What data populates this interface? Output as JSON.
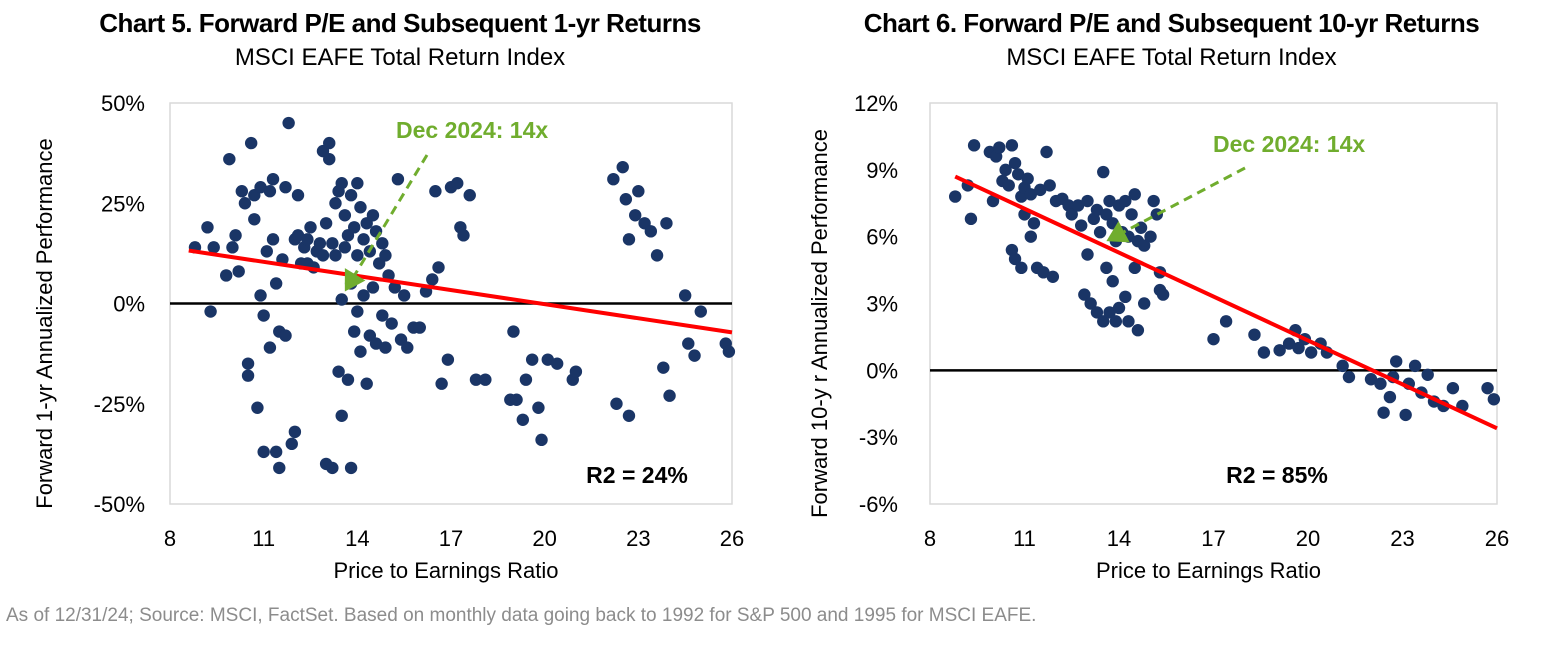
{
  "footnote": "As of 12/31/24; Source: MSCI, FactSet. Based on monthly data going back to 1992 for S&P 500 and 1995 for MSCI EAFE.",
  "colors": {
    "points": "#1a3566",
    "trend": "#ff0000",
    "annotation": "#70ad2e",
    "zero_line": "#000000",
    "border": "#d9d9d9"
  },
  "chart_data": [
    {
      "type": "scatter",
      "title": "Chart 5. Forward P/E and Subsequent 1-yr Returns",
      "subtitle": "MSCI EAFE Total Return Index",
      "xlabel": "Price to Earnings  Ratio",
      "ylabel": "Forward  1-yr Annualized  Performance",
      "xlim": [
        8,
        26
      ],
      "ylim": [
        -0.5,
        0.5
      ],
      "x_ticks": [
        8,
        11,
        14,
        17,
        20,
        23,
        26
      ],
      "y_ticks": [
        0.5,
        0.25,
        0,
        -0.25,
        -0.5
      ],
      "y_tick_labels": [
        "50%",
        "25%",
        "0%",
        "-25%",
        "-50%"
      ],
      "annotation": {
        "text": "Dec 2024: 14x",
        "x": 13.6,
        "y": 0.03
      },
      "r2_label": "R2 = 24%",
      "trendline": {
        "x": [
          8.6,
          26
        ],
        "y": [
          0.132,
          -0.072
        ]
      },
      "points": [
        [
          8.8,
          0.14
        ],
        [
          9.2,
          0.19
        ],
        [
          9.3,
          -0.02
        ],
        [
          9.4,
          0.14
        ],
        [
          9.8,
          0.07
        ],
        [
          9.9,
          0.36
        ],
        [
          10.0,
          0.14
        ],
        [
          10.1,
          0.17
        ],
        [
          10.2,
          0.08
        ],
        [
          10.3,
          0.28
        ],
        [
          10.4,
          0.25
        ],
        [
          10.5,
          -0.15
        ],
        [
          10.5,
          -0.18
        ],
        [
          10.6,
          0.4
        ],
        [
          10.7,
          0.21
        ],
        [
          10.7,
          0.27
        ],
        [
          10.8,
          -0.26
        ],
        [
          10.9,
          0.29
        ],
        [
          10.9,
          0.02
        ],
        [
          11.0,
          -0.03
        ],
        [
          11.0,
          -0.37
        ],
        [
          11.1,
          0.13
        ],
        [
          11.2,
          0.28
        ],
        [
          11.2,
          -0.11
        ],
        [
          11.3,
          0.31
        ],
        [
          11.3,
          0.16
        ],
        [
          11.4,
          -0.37
        ],
        [
          11.4,
          0.05
        ],
        [
          11.5,
          -0.41
        ],
        [
          11.5,
          -0.07
        ],
        [
          11.6,
          0.11
        ],
        [
          11.7,
          0.29
        ],
        [
          11.7,
          -0.08
        ],
        [
          11.8,
          0.45
        ],
        [
          11.9,
          -0.35
        ],
        [
          12.0,
          -0.32
        ],
        [
          12.0,
          0.16
        ],
        [
          12.1,
          0.27
        ],
        [
          12.1,
          0.17
        ],
        [
          12.2,
          0.1
        ],
        [
          12.3,
          0.14
        ],
        [
          12.4,
          0.16
        ],
        [
          12.4,
          0.1
        ],
        [
          12.5,
          0.19
        ],
        [
          12.6,
          0.09
        ],
        [
          12.7,
          0.13
        ],
        [
          12.8,
          0.15
        ],
        [
          12.9,
          0.38
        ],
        [
          12.9,
          0.12
        ],
        [
          13.0,
          -0.4
        ],
        [
          13.0,
          0.2
        ],
        [
          13.1,
          0.4
        ],
        [
          13.1,
          0.36
        ],
        [
          13.2,
          -0.41
        ],
        [
          13.2,
          0.15
        ],
        [
          13.3,
          0.25
        ],
        [
          13.3,
          0.12
        ],
        [
          13.4,
          0.28
        ],
        [
          13.4,
          -0.17
        ],
        [
          13.5,
          0.3
        ],
        [
          13.5,
          0.01
        ],
        [
          13.5,
          -0.28
        ],
        [
          13.6,
          0.22
        ],
        [
          13.6,
          0.14
        ],
        [
          13.7,
          0.17
        ],
        [
          13.7,
          -0.19
        ],
        [
          13.8,
          0.27
        ],
        [
          13.8,
          -0.41
        ],
        [
          13.8,
          0.05
        ],
        [
          13.9,
          0.19
        ],
        [
          13.9,
          -0.07
        ],
        [
          14.0,
          0.3
        ],
        [
          14.0,
          0.12
        ],
        [
          14.0,
          -0.02
        ],
        [
          14.1,
          0.24
        ],
        [
          14.1,
          -0.12
        ],
        [
          14.2,
          0.16
        ],
        [
          14.2,
          0.02
        ],
        [
          14.3,
          0.2
        ],
        [
          14.3,
          -0.2
        ],
        [
          14.4,
          0.13
        ],
        [
          14.4,
          -0.08
        ],
        [
          14.5,
          0.22
        ],
        [
          14.5,
          0.04
        ],
        [
          14.6,
          0.18
        ],
        [
          14.6,
          -0.1
        ],
        [
          14.7,
          0.1
        ],
        [
          14.8,
          0.15
        ],
        [
          14.8,
          -0.03
        ],
        [
          14.9,
          0.12
        ],
        [
          14.9,
          -0.11
        ],
        [
          15.0,
          0.07
        ],
        [
          15.1,
          -0.05
        ],
        [
          15.2,
          0.04
        ],
        [
          15.3,
          0.31
        ],
        [
          15.4,
          -0.09
        ],
        [
          15.5,
          0.02
        ],
        [
          15.6,
          -0.11
        ],
        [
          15.8,
          -0.06
        ],
        [
          16.0,
          -0.06
        ],
        [
          16.2,
          0.03
        ],
        [
          16.4,
          0.06
        ],
        [
          16.5,
          0.28
        ],
        [
          16.6,
          0.09
        ],
        [
          16.7,
          -0.2
        ],
        [
          16.9,
          -0.14
        ],
        [
          17.0,
          0.29
        ],
        [
          17.2,
          0.3
        ],
        [
          17.3,
          0.19
        ],
        [
          17.4,
          0.17
        ],
        [
          17.6,
          0.27
        ],
        [
          17.8,
          -0.19
        ],
        [
          18.1,
          -0.19
        ],
        [
          18.9,
          -0.24
        ],
        [
          19.0,
          -0.07
        ],
        [
          19.1,
          -0.24
        ],
        [
          19.3,
          -0.29
        ],
        [
          19.4,
          -0.19
        ],
        [
          19.6,
          -0.14
        ],
        [
          19.8,
          -0.26
        ],
        [
          19.9,
          -0.34
        ],
        [
          20.1,
          -0.14
        ],
        [
          20.4,
          -0.15
        ],
        [
          20.9,
          -0.19
        ],
        [
          21.0,
          -0.17
        ],
        [
          22.2,
          0.31
        ],
        [
          22.3,
          -0.25
        ],
        [
          22.5,
          0.34
        ],
        [
          22.6,
          0.26
        ],
        [
          22.7,
          0.16
        ],
        [
          22.9,
          0.22
        ],
        [
          23.0,
          0.28
        ],
        [
          23.2,
          0.2
        ],
        [
          23.4,
          0.18
        ],
        [
          23.6,
          0.12
        ],
        [
          23.8,
          -0.16
        ],
        [
          23.9,
          0.2
        ],
        [
          24.0,
          -0.23
        ],
        [
          24.5,
          0.02
        ],
        [
          24.6,
          -0.1
        ],
        [
          24.8,
          -0.13
        ],
        [
          25.0,
          -0.02
        ],
        [
          25.8,
          -0.1
        ],
        [
          25.9,
          -0.12
        ],
        [
          22.7,
          -0.28
        ]
      ]
    },
    {
      "type": "scatter",
      "title": "Chart 6. Forward P/E and Subsequent 10-yr Returns",
      "subtitle": "MSCI EAFE Total Return Index",
      "xlabel": "Price to Earnings  Ratio",
      "ylabel": "Forward  10-y r Annualized  Performance",
      "xlim": [
        8,
        26
      ],
      "ylim": [
        -0.06,
        0.12
      ],
      "x_ticks": [
        8,
        11,
        14,
        17,
        20,
        23,
        26
      ],
      "y_ticks": [
        0.12,
        0.09,
        0.06,
        0.03,
        0,
        -0.03,
        -0.06
      ],
      "y_tick_labels": [
        "12%",
        "9%",
        "6%",
        "3%",
        "0%",
        "-3%",
        "-6%"
      ],
      "annotation": {
        "text": "Dec 2024: 14x",
        "x": 13.6,
        "y": 0.058
      },
      "r2_label": "R2 = 85%",
      "trendline": {
        "x": [
          8.8,
          26
        ],
        "y": [
          0.087,
          -0.026
        ]
      },
      "points": [
        [
          8.8,
          0.078
        ],
        [
          9.2,
          0.083
        ],
        [
          9.3,
          0.068
        ],
        [
          9.4,
          0.101
        ],
        [
          9.9,
          0.098
        ],
        [
          10.0,
          0.076
        ],
        [
          10.1,
          0.096
        ],
        [
          10.2,
          0.1
        ],
        [
          10.3,
          0.085
        ],
        [
          10.4,
          0.09
        ],
        [
          10.5,
          0.083
        ],
        [
          10.6,
          0.101
        ],
        [
          10.7,
          0.093
        ],
        [
          10.8,
          0.088
        ],
        [
          10.9,
          0.078
        ],
        [
          11.0,
          0.082
        ],
        [
          11.0,
          0.07
        ],
        [
          11.1,
          0.086
        ],
        [
          11.2,
          0.079
        ],
        [
          11.3,
          0.066
        ],
        [
          10.6,
          0.054
        ],
        [
          10.7,
          0.05
        ],
        [
          10.9,
          0.046
        ],
        [
          11.2,
          0.06
        ],
        [
          11.4,
          0.046
        ],
        [
          11.5,
          0.081
        ],
        [
          11.6,
          0.044
        ],
        [
          11.7,
          0.098
        ],
        [
          11.8,
          0.083
        ],
        [
          11.9,
          0.042
        ],
        [
          12.0,
          0.076
        ],
        [
          12.2,
          0.077
        ],
        [
          12.4,
          0.074
        ],
        [
          12.5,
          0.07
        ],
        [
          12.7,
          0.074
        ],
        [
          12.8,
          0.065
        ],
        [
          12.9,
          0.034
        ],
        [
          13.0,
          0.076
        ],
        [
          13.0,
          0.052
        ],
        [
          13.1,
          0.03
        ],
        [
          13.2,
          0.068
        ],
        [
          13.3,
          0.072
        ],
        [
          13.3,
          0.026
        ],
        [
          13.4,
          0.062
        ],
        [
          13.5,
          0.089
        ],
        [
          13.5,
          0.022
        ],
        [
          13.6,
          0.07
        ],
        [
          13.6,
          0.046
        ],
        [
          13.7,
          0.076
        ],
        [
          13.7,
          0.026
        ],
        [
          13.8,
          0.066
        ],
        [
          13.8,
          0.04
        ],
        [
          13.9,
          0.058
        ],
        [
          13.9,
          0.022
        ],
        [
          14.0,
          0.074
        ],
        [
          14.0,
          0.028
        ],
        [
          14.1,
          0.062
        ],
        [
          14.2,
          0.076
        ],
        [
          14.2,
          0.033
        ],
        [
          14.3,
          0.06
        ],
        [
          14.3,
          0.022
        ],
        [
          14.4,
          0.07
        ],
        [
          14.5,
          0.079
        ],
        [
          14.5,
          0.046
        ],
        [
          14.6,
          0.058
        ],
        [
          14.6,
          0.018
        ],
        [
          14.7,
          0.064
        ],
        [
          14.8,
          0.056
        ],
        [
          14.8,
          0.03
        ],
        [
          15.0,
          0.06
        ],
        [
          15.1,
          0.076
        ],
        [
          15.2,
          0.07
        ],
        [
          15.3,
          0.036
        ],
        [
          15.4,
          0.034
        ],
        [
          15.3,
          0.044
        ],
        [
          17.0,
          0.014
        ],
        [
          17.4,
          0.022
        ],
        [
          18.3,
          0.016
        ],
        [
          18.6,
          0.008
        ],
        [
          19.1,
          0.009
        ],
        [
          19.4,
          0.012
        ],
        [
          19.6,
          0.018
        ],
        [
          19.7,
          0.01
        ],
        [
          19.9,
          0.014
        ],
        [
          20.1,
          0.008
        ],
        [
          20.4,
          0.012
        ],
        [
          20.6,
          0.008
        ],
        [
          21.1,
          0.002
        ],
        [
          21.3,
          -0.003
        ],
        [
          22.0,
          -0.004
        ],
        [
          22.3,
          -0.006
        ],
        [
          22.4,
          -0.019
        ],
        [
          22.6,
          -0.012
        ],
        [
          22.8,
          0.004
        ],
        [
          23.1,
          -0.02
        ],
        [
          23.2,
          -0.006
        ],
        [
          23.4,
          0.002
        ],
        [
          23.6,
          -0.01
        ],
        [
          23.8,
          -0.002
        ],
        [
          24.0,
          -0.014
        ],
        [
          24.3,
          -0.016
        ],
        [
          24.6,
          -0.008
        ],
        [
          24.9,
          -0.016
        ],
        [
          25.7,
          -0.008
        ],
        [
          25.9,
          -0.013
        ],
        [
          22.7,
          -0.003
        ]
      ]
    }
  ]
}
